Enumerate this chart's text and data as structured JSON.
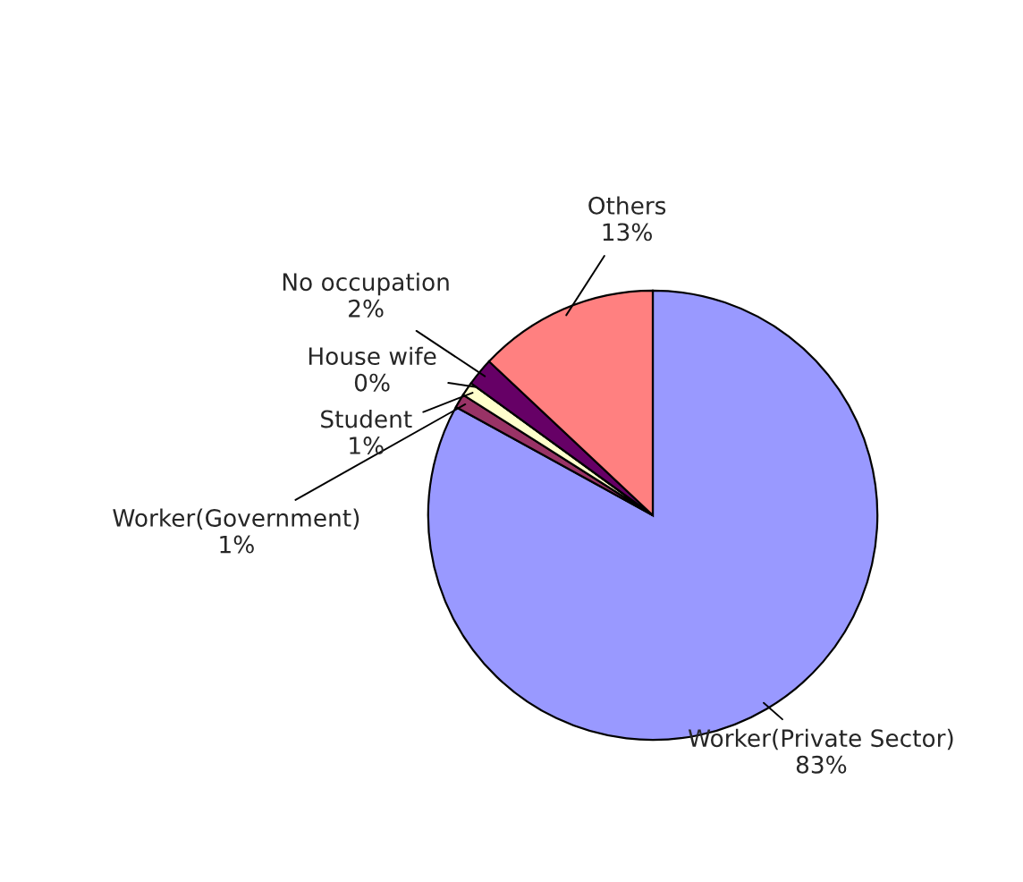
{
  "chart_data": {
    "type": "pie",
    "categories": [
      "Worker(Private Sector)",
      "Worker(Government)",
      "Student",
      "House wife",
      "No occupation",
      "Others"
    ],
    "values": [
      83,
      1,
      1,
      0,
      2,
      13
    ],
    "colors": [
      "#9999ff",
      "#993366",
      "#ffffcc",
      "#ccffff",
      "#660066",
      "#ff8080"
    ],
    "value_labels": [
      "83%",
      "1%",
      "1%",
      "0%",
      "2%",
      "13%"
    ],
    "legend": false
  }
}
